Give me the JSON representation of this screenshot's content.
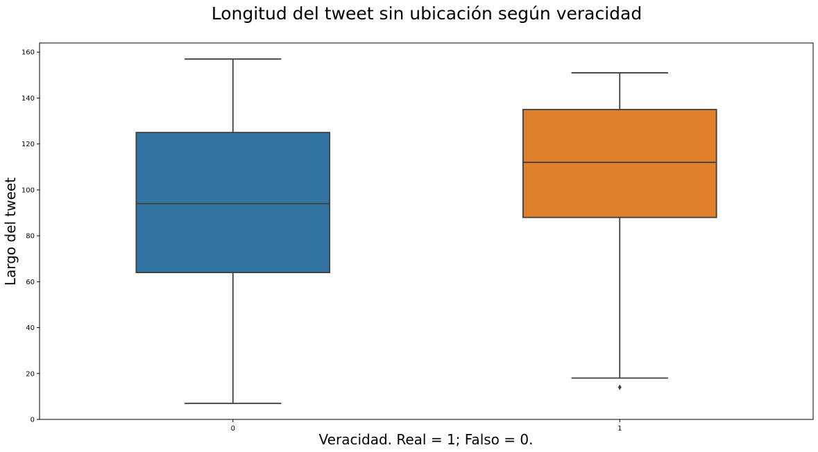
{
  "chart_data": {
    "type": "box",
    "title": "Longitud del tweet sin ubicación según veracidad",
    "xlabel": "Veracidad. Real = 1; Falso = 0.",
    "ylabel": "Largo del tweet",
    "ylim": [
      0,
      164
    ],
    "yticks": [
      0,
      20,
      40,
      60,
      80,
      100,
      120,
      140,
      160
    ],
    "grid": false,
    "categories": [
      "0",
      "1"
    ],
    "boxes": [
      {
        "category": "0",
        "whisker_low": 7,
        "q1": 64,
        "median": 94,
        "q3": 125,
        "whisker_high": 157,
        "outliers": [],
        "color": "#3274a1"
      },
      {
        "category": "1",
        "whisker_low": 18,
        "q1": 88,
        "median": 112,
        "q3": 135,
        "whisker_high": 151,
        "outliers": [
          14
        ],
        "color": "#e1812c"
      }
    ]
  }
}
